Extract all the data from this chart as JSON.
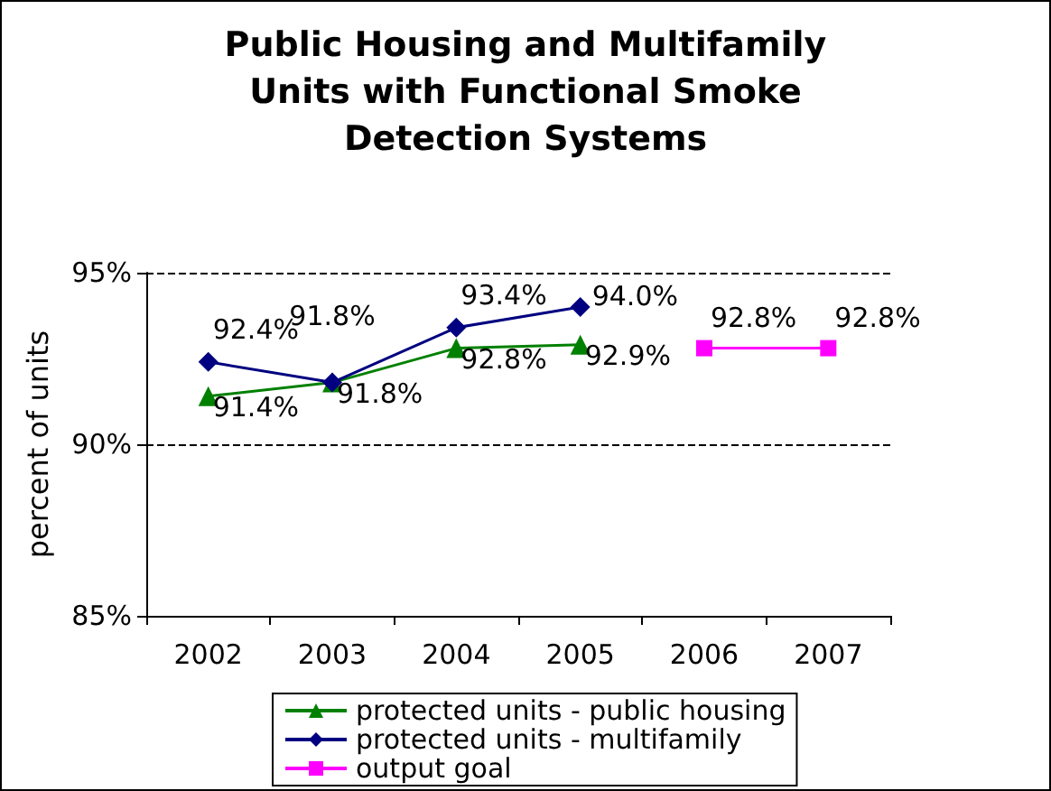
{
  "chart_data": {
    "type": "line",
    "title": "Public Housing and Multifamily Units with Functional Smoke Detection Systems",
    "ylabel": "percent of units",
    "categories": [
      "2002",
      "2003",
      "2004",
      "2005",
      "2006",
      "2007"
    ],
    "series": [
      {
        "name": "protected units - public housing",
        "color": "#008000",
        "marker": "triangle",
        "values": [
          91.4,
          91.8,
          92.8,
          92.9,
          null,
          null
        ],
        "value_labels": [
          "91.4%",
          "91.8%",
          "92.8%",
          "92.9%",
          null,
          null
        ]
      },
      {
        "name": "protected units - multifamily",
        "color": "#000080",
        "marker": "diamond",
        "values": [
          92.4,
          91.8,
          93.4,
          94.0,
          null,
          null
        ],
        "value_labels": [
          "92.4%",
          "91.8%",
          "93.4%",
          "94.0%",
          null,
          null
        ]
      },
      {
        "name": "output goal",
        "color": "#ff00ff",
        "marker": "square",
        "values": [
          null,
          null,
          null,
          null,
          92.8,
          92.8
        ],
        "value_labels": [
          null,
          null,
          null,
          null,
          "92.8%",
          "92.8%"
        ]
      }
    ],
    "ylim": [
      85,
      95
    ],
    "yticks": [
      {
        "value": 85,
        "label": "85%"
      },
      {
        "value": 90,
        "label": "90%"
      },
      {
        "value": 95,
        "label": "95%"
      }
    ],
    "grid": "y",
    "legend": "bottom",
    "line_style": "solid"
  }
}
